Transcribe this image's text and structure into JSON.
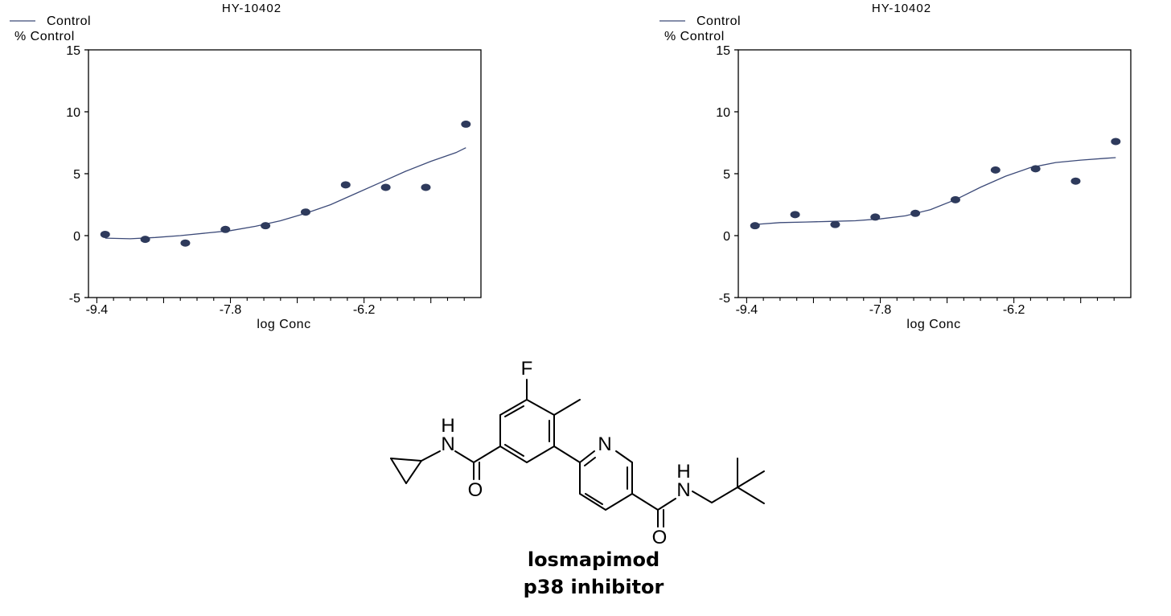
{
  "charts": [
    {
      "title": "HY-10402",
      "legend": {
        "line_label": "Control",
        "dot_label": "% Control"
      },
      "xlabel": "log Conc",
      "x_ticks": [
        "-9.4",
        "-7.8",
        "-6.2"
      ],
      "y_ticks": [
        "15",
        "10",
        "5",
        "0",
        "-5"
      ]
    },
    {
      "title": "HY-10402",
      "legend": {
        "line_label": "Control",
        "dot_label": "% Control"
      },
      "xlabel": "log Conc",
      "x_ticks": [
        "-9.4",
        "-7.8",
        "-6.2"
      ],
      "y_ticks": [
        "15",
        "10",
        "5",
        "0",
        "-5"
      ]
    }
  ],
  "chart_data": [
    {
      "type": "scatter",
      "title": "HY-10402",
      "xlabel": "log Conc",
      "ylabel": "",
      "xlim": [
        -9.5,
        -4.8
      ],
      "ylim": [
        -5,
        15
      ],
      "x_ticks": [
        -9.4,
        -7.8,
        -6.2
      ],
      "y_ticks": [
        -5,
        0,
        5,
        10,
        15
      ],
      "grid": false,
      "legend_position": "top-left",
      "colors": {
        "points": "#2e3a5c",
        "curve": "#3c4a78",
        "axes": "#000000"
      },
      "series": [
        {
          "name": "% Control",
          "x": [
            -9.3,
            -8.82,
            -8.34,
            -7.86,
            -7.38,
            -6.9,
            -6.42,
            -5.94,
            -5.46,
            -4.98
          ],
          "y": [
            0.1,
            -0.3,
            -0.6,
            0.5,
            0.8,
            1.9,
            4.1,
            3.9,
            3.9,
            9.0
          ]
        },
        {
          "name": "Control",
          "x": [
            -9.3,
            -9.0,
            -8.7,
            -8.4,
            -8.1,
            -7.8,
            -7.5,
            -7.2,
            -6.9,
            -6.6,
            -6.3,
            -6.0,
            -5.7,
            -5.4,
            -5.1,
            -4.98
          ],
          "y": [
            -0.2,
            -0.25,
            -0.15,
            0.0,
            0.2,
            0.4,
            0.75,
            1.2,
            1.8,
            2.5,
            3.4,
            4.3,
            5.2,
            6.0,
            6.7,
            7.1
          ]
        }
      ]
    },
    {
      "type": "scatter",
      "title": "HY-10402",
      "xlabel": "log Conc",
      "ylabel": "",
      "xlim": [
        -9.5,
        -4.8
      ],
      "ylim": [
        -5,
        15
      ],
      "x_ticks": [
        -9.4,
        -7.8,
        -6.2
      ],
      "y_ticks": [
        -5,
        0,
        5,
        10,
        15
      ],
      "grid": false,
      "legend_position": "top-left",
      "colors": {
        "points": "#2e3a5c",
        "curve": "#3c4a78",
        "axes": "#000000"
      },
      "series": [
        {
          "name": "% Control",
          "x": [
            -9.3,
            -8.82,
            -8.34,
            -7.86,
            -7.38,
            -6.9,
            -6.42,
            -5.94,
            -5.46,
            -4.98
          ],
          "y": [
            0.8,
            1.7,
            0.9,
            1.5,
            1.8,
            2.9,
            5.3,
            5.4,
            4.4,
            7.6
          ]
        },
        {
          "name": "Control",
          "x": [
            -9.3,
            -9.0,
            -8.7,
            -8.4,
            -8.1,
            -7.8,
            -7.5,
            -7.2,
            -6.9,
            -6.6,
            -6.3,
            -6.0,
            -5.7,
            -5.4,
            -5.1,
            -4.98
          ],
          "y": [
            0.9,
            1.05,
            1.1,
            1.15,
            1.2,
            1.35,
            1.6,
            2.1,
            2.9,
            3.9,
            4.8,
            5.5,
            5.9,
            6.1,
            6.25,
            6.3
          ]
        }
      ]
    }
  ],
  "molecule": {
    "atoms": {
      "F": "F",
      "N_pyridine": "N",
      "NH_left": "H",
      "N_left": "N",
      "O_left": "O",
      "NH_right": "H",
      "N_right": "N",
      "O_right": "O"
    }
  },
  "caption": {
    "name": "losmapimod",
    "class": "p38 inhibitor"
  }
}
